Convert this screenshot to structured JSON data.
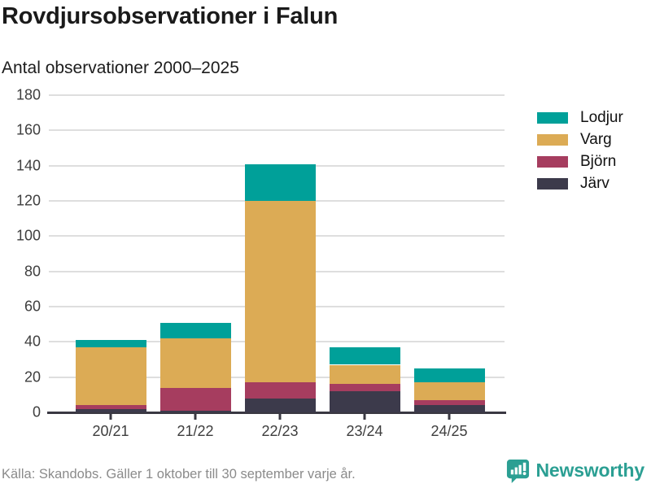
{
  "chart_data": {
    "type": "bar",
    "stacked": true,
    "title": "Rovdjursobservationer i Falun",
    "subtitle": "Antal observationer 2000–2025",
    "categories": [
      "20/21",
      "21/22",
      "22/23",
      "23/24",
      "24/25"
    ],
    "series": [
      {
        "name": "Lodjur",
        "color": "#00a099",
        "values": [
          4,
          9,
          21,
          10,
          8
        ]
      },
      {
        "name": "Varg",
        "color": "#dcab55",
        "values": [
          33,
          28,
          103,
          11,
          10
        ]
      },
      {
        "name": "Björn",
        "color": "#a63d5f",
        "values": [
          2,
          13,
          9,
          4,
          3
        ]
      },
      {
        "name": "Järv",
        "color": "#3c3a4b",
        "values": [
          2,
          1,
          8,
          12,
          4
        ]
      }
    ],
    "totals": [
      41,
      51,
      141,
      37,
      25
    ],
    "ylim": [
      0,
      180
    ],
    "ytick_step": 20,
    "grid": true,
    "legend_position": "right",
    "colors": {
      "grid": "#dedede",
      "axis": "#3a3842",
      "tick_text": "#3e3e3e",
      "brand_teal": "#2b9f93"
    }
  },
  "footer": {
    "source": "Källa: Skandobs. Gäller 1 oktober till 30 september varje år.",
    "brand": "Newsworthy"
  }
}
